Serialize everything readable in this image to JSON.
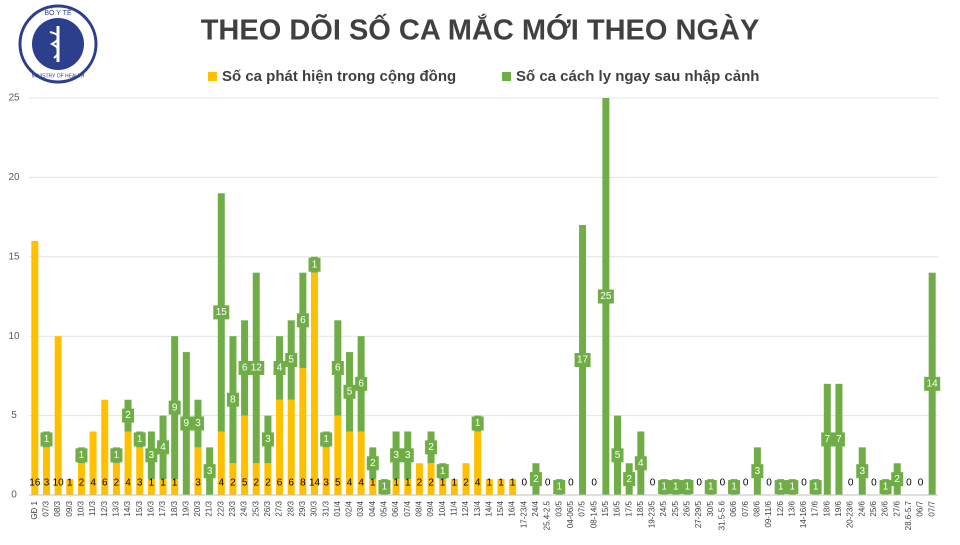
{
  "logo": {
    "top": "BỘ Y TẾ",
    "bottom": "MINISTRY OF HEALTH"
  },
  "chart_data": {
    "type": "bar",
    "stacked": true,
    "title": "THEO DÕI SỐ CA MẮC MỚI THEO NGÀY",
    "categories": [
      "GĐ 1",
      "07/3",
      "08/3",
      "09/3",
      "10/3",
      "11/3",
      "12/3",
      "13/3",
      "14/3",
      "15/3",
      "16/3",
      "17/3",
      "18/3",
      "19/3",
      "20/3",
      "21/3",
      "22/3",
      "23/3",
      "24/3",
      "25/3",
      "26/3",
      "27/3",
      "28/3",
      "29/3",
      "30/3",
      "31/3",
      "01/4",
      "02/4",
      "03/4",
      "04/4",
      "05/4",
      "06/4",
      "07/4",
      "08/4",
      "09/4",
      "10/4",
      "11/4",
      "12/4",
      "13/4",
      "14/4",
      "15/4",
      "16/4",
      "17-23/4",
      "24/4",
      "25.4-2.5",
      "03/5",
      "04-06/5",
      "07/5",
      "08-14/5",
      "15/5",
      "16/5",
      "17/5",
      "18/5",
      "19-23/5",
      "24/5",
      "25/5",
      "26/5",
      "27-29/5",
      "30/5",
      "31.5-5.6",
      "06/6",
      "07/6",
      "08/6",
      "09-11/6",
      "12/6",
      "13/6",
      "14-16/6",
      "17/6",
      "18/6",
      "19/6",
      "20-23/6",
      "24/6",
      "25/6",
      "26/6",
      "27/6",
      "28.6-5.7",
      "06/7",
      "07/7"
    ],
    "series": [
      {
        "name": "Số ca phát hiện trong cộng đồng",
        "color": "#ffc000",
        "values": [
          16,
          3,
          10,
          1,
          2,
          4,
          6,
          2,
          4,
          3,
          1,
          1,
          1,
          0,
          3,
          0,
          4,
          2,
          5,
          2,
          2,
          6,
          6,
          8,
          14,
          3,
          5,
          4,
          4,
          1,
          0,
          1,
          1,
          2,
          2,
          1,
          1,
          2,
          4,
          1,
          1,
          1,
          0,
          0,
          0,
          0,
          0,
          0,
          0,
          0,
          0,
          0,
          0,
          0,
          0,
          0,
          0,
          0,
          0,
          0,
          0,
          0,
          0,
          0,
          0,
          0,
          0,
          0,
          0,
          0,
          0,
          0,
          0,
          0,
          0,
          0,
          0,
          0
        ]
      },
      {
        "name": "Số ca cách ly ngay sau nhập cảnh",
        "color": "#70ad47",
        "values": [
          0,
          1,
          0,
          0,
          1,
          0,
          0,
          1,
          2,
          1,
          3,
          4,
          9,
          9,
          3,
          3,
          15,
          8,
          6,
          12,
          3,
          4,
          5,
          6,
          1,
          1,
          6,
          5,
          6,
          2,
          1,
          3,
          3,
          0,
          2,
          1,
          0,
          0,
          1,
          0,
          0,
          0,
          0,
          2,
          0,
          1,
          0,
          17,
          0,
          25,
          5,
          2,
          4,
          0,
          1,
          1,
          1,
          0,
          1,
          0,
          1,
          0,
          3,
          0,
          1,
          1,
          0,
          1,
          7,
          7,
          0,
          3,
          0,
          1,
          2,
          0,
          0,
          14
        ]
      }
    ],
    "ylim": [
      0,
      25
    ],
    "yticks": [
      0,
      5,
      10,
      15,
      20,
      25
    ],
    "grid": true,
    "legend": "top"
  }
}
